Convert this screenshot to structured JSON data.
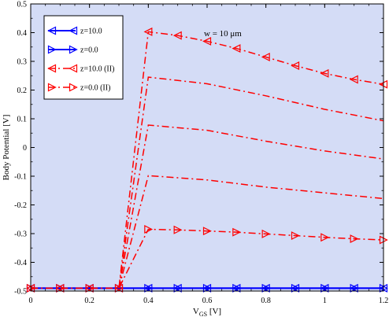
{
  "chart_data": {
    "type": "line",
    "xlabel_main": "V",
    "xlabel_sub": "GS",
    "xlabel_unit": " [V]",
    "ylabel": "Body Potential [V]",
    "xlim": [
      0,
      1.2
    ],
    "ylim": [
      -0.5,
      0.5
    ],
    "xticks": [
      0,
      0.2,
      0.4,
      0.6,
      0.8,
      1,
      1.2
    ],
    "xtick_labels": [
      "0",
      "0.2",
      "0.4",
      "0.6",
      "0.8",
      "1",
      "1.2"
    ],
    "yticks": [
      -0.5,
      -0.4,
      -0.3,
      -0.2,
      -0.1,
      0,
      0.1,
      0.2,
      0.3,
      0.4,
      0.5
    ],
    "ytick_labels": [
      "-0.5",
      "-0.4",
      "-0.3",
      "-0.2",
      "-0.1",
      "0",
      "0.1",
      "0.2",
      "0.3",
      "0.4",
      "0.5"
    ],
    "annotation": "w = 10 μm",
    "legend_position": "top-left",
    "plot_background": "#d4dcf6",
    "series": [
      {
        "name": "z=10.0",
        "color": "#0000ff",
        "style": "solid",
        "marker": "triangle-left",
        "x": [
          0,
          0.1,
          0.2,
          0.3,
          0.4,
          0.5,
          0.6,
          0.7,
          0.8,
          0.9,
          1.0,
          1.1,
          1.2
        ],
        "y": [
          -0.49,
          -0.49,
          -0.49,
          -0.49,
          -0.49,
          -0.49,
          -0.49,
          -0.49,
          -0.49,
          -0.49,
          -0.49,
          -0.49,
          -0.49
        ]
      },
      {
        "name": "z=0.0",
        "color": "#0000ff",
        "style": "solid",
        "marker": "triangle-right",
        "x": [
          0,
          0.1,
          0.2,
          0.3,
          0.4,
          0.5,
          0.6,
          0.7,
          0.8,
          0.9,
          1.0,
          1.1,
          1.2
        ],
        "y": [
          -0.49,
          -0.49,
          -0.49,
          -0.49,
          -0.49,
          -0.49,
          -0.49,
          -0.49,
          -0.49,
          -0.49,
          -0.49,
          -0.49,
          -0.49
        ]
      },
      {
        "name": "z=10.0 (II)",
        "color": "#ff0000",
        "style": "dashdot",
        "marker": "triangle-left",
        "x": [
          0,
          0.1,
          0.2,
          0.3,
          0.4,
          0.5,
          0.6,
          0.7,
          0.8,
          0.9,
          1.0,
          1.1,
          1.2
        ],
        "y": [
          -0.49,
          -0.49,
          -0.49,
          -0.49,
          0.403,
          0.39,
          0.37,
          0.345,
          0.315,
          0.285,
          0.258,
          0.237,
          0.22
        ]
      },
      {
        "name": "z=0.0 (II)",
        "color": "#ff0000",
        "style": "dashdot",
        "marker": "triangle-right",
        "x": [
          0,
          0.1,
          0.2,
          0.3,
          0.4,
          0.5,
          0.6,
          0.7,
          0.8,
          0.9,
          1.0,
          1.1,
          1.2
        ],
        "y": [
          -0.49,
          -0.49,
          -0.49,
          -0.49,
          -0.285,
          -0.287,
          -0.291,
          -0.295,
          -0.301,
          -0.307,
          -0.313,
          -0.318,
          -0.322
        ]
      },
      {
        "name": "",
        "color": "#ff0000",
        "style": "dashdot",
        "marker": "none",
        "x": [
          0.3,
          0.4,
          0.6,
          0.8,
          1.0,
          1.2
        ],
        "y": [
          -0.49,
          0.245,
          0.222,
          0.18,
          0.133,
          0.093
        ]
      },
      {
        "name": "",
        "color": "#ff0000",
        "style": "dashdot",
        "marker": "none",
        "x": [
          0.3,
          0.4,
          0.6,
          0.8,
          1.0,
          1.2
        ],
        "y": [
          -0.49,
          0.078,
          0.06,
          0.022,
          -0.012,
          -0.04
        ]
      },
      {
        "name": "",
        "color": "#ff0000",
        "style": "dashdot",
        "marker": "none",
        "x": [
          0.3,
          0.4,
          0.6,
          0.8,
          1.0,
          1.2
        ],
        "y": [
          -0.49,
          -0.098,
          -0.113,
          -0.138,
          -0.158,
          -0.178
        ]
      }
    ]
  }
}
